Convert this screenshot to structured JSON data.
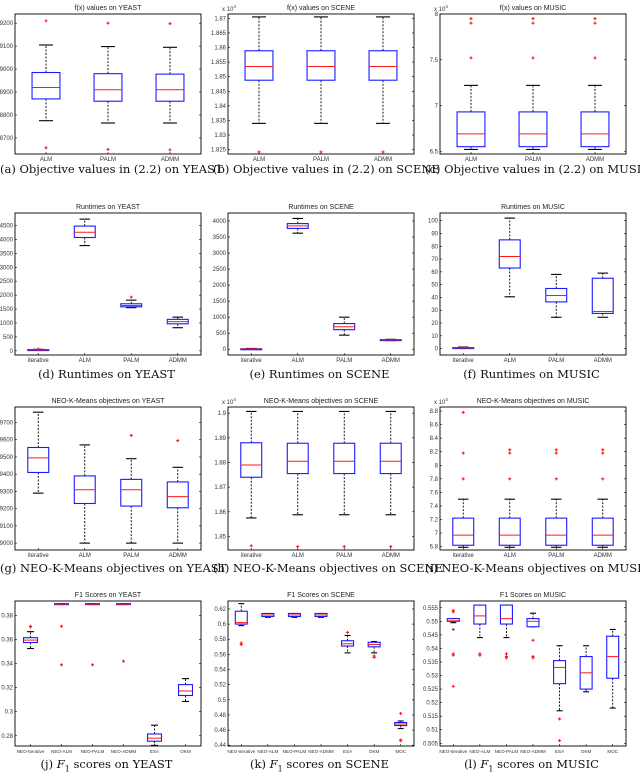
{
  "chart_data": [
    {
      "id": "a",
      "type": "boxplot",
      "title": "f(x) values on YEAST",
      "caption": "(a) Objective values in (2.2) on YEAST",
      "multiplier": "",
      "ylim": [
        8630,
        9240
      ],
      "yticks": [
        8700,
        8800,
        8900,
        9000,
        9100,
        9200
      ],
      "ytick_labels": [
        "8700",
        "8800",
        "8900",
        "9000",
        "9100",
        "9200"
      ],
      "categories": [
        "ALM",
        "PALM",
        "ADMM"
      ],
      "boxes": [
        {
          "whislo": 8775,
          "q1": 8870,
          "med": 8920,
          "q3": 8985,
          "whishi": 9105,
          "fliers": [
            9210,
            8657
          ]
        },
        {
          "whislo": 8765,
          "q1": 8860,
          "med": 8910,
          "q3": 8980,
          "whishi": 9098,
          "fliers": [
            9200,
            8650
          ]
        },
        {
          "whislo": 8765,
          "q1": 8860,
          "med": 8910,
          "q3": 8978,
          "whishi": 9095,
          "fliers": [
            9198,
            8648
          ]
        }
      ]
    },
    {
      "id": "b",
      "type": "boxplot",
      "title": "f(x) values on SCENE",
      "caption": "(b) Objective values in (2.2) on SCENE",
      "multiplier": "x 10^4",
      "ylim": [
        1.8235,
        1.8715
      ],
      "yticks": [
        1.825,
        1.83,
        1.835,
        1.84,
        1.845,
        1.85,
        1.855,
        1.86,
        1.865,
        1.87
      ],
      "ytick_labels": [
        "1.825",
        "1.83",
        "1.835",
        "1.84",
        "1.845",
        "1.85",
        "1.855",
        "1.86",
        "1.865",
        "1.87"
      ],
      "categories": [
        "ALM",
        "PALM",
        "ADMM"
      ],
      "boxes": [
        {
          "whislo": 1.834,
          "q1": 1.8488,
          "med": 1.8535,
          "q3": 1.8589,
          "whishi": 1.8705,
          "fliers": [
            1.8242
          ]
        },
        {
          "whislo": 1.834,
          "q1": 1.8488,
          "med": 1.8535,
          "q3": 1.8589,
          "whishi": 1.8705,
          "fliers": [
            1.8242
          ]
        },
        {
          "whislo": 1.834,
          "q1": 1.8488,
          "med": 1.8535,
          "q3": 1.8589,
          "whishi": 1.8705,
          "fliers": [
            1.8242
          ]
        }
      ]
    },
    {
      "id": "c",
      "type": "boxplot",
      "title": "f(x) values on MUSIC",
      "caption": "(c) Objective values in (2.2) on MUSIC",
      "multiplier": "x 10^4",
      "ylim": [
        6.47,
        8.0
      ],
      "yticks": [
        6.5,
        7,
        7.5,
        8
      ],
      "ytick_labels": [
        "6.5",
        "7",
        "7.5",
        "8"
      ],
      "categories": [
        "ALM",
        "PALM",
        "ADMM"
      ],
      "boxes": [
        {
          "whislo": 6.52,
          "q1": 6.55,
          "med": 6.69,
          "q3": 6.93,
          "whishi": 7.22,
          "fliers": [
            7.52,
            7.9,
            7.95
          ]
        },
        {
          "whislo": 6.52,
          "q1": 6.55,
          "med": 6.69,
          "q3": 6.93,
          "whishi": 7.22,
          "fliers": [
            7.52,
            7.9,
            7.95
          ]
        },
        {
          "whislo": 6.52,
          "q1": 6.55,
          "med": 6.69,
          "q3": 6.93,
          "whishi": 7.22,
          "fliers": [
            7.52,
            7.9,
            7.95
          ]
        }
      ]
    },
    {
      "id": "d",
      "type": "boxplot",
      "title": "Runtimes on YEAST",
      "caption": "(d) Runtimes on YEAST",
      "multiplier": "",
      "ylim": [
        -150,
        4950
      ],
      "yticks": [
        0,
        500,
        1000,
        1500,
        2000,
        2500,
        3000,
        3500,
        4000,
        4500
      ],
      "ytick_labels": [
        "0",
        "500",
        "1000",
        "1500",
        "2000",
        "2500",
        "3000",
        "3500",
        "4000",
        "4500"
      ],
      "categories": [
        "iterative",
        "ALM",
        "PALM",
        "ADMM"
      ],
      "boxes": [
        {
          "whislo": 20,
          "q1": 25,
          "med": 35,
          "q3": 45,
          "whishi": 55,
          "fliers": [
            70
          ]
        },
        {
          "whislo": 3780,
          "q1": 4070,
          "med": 4260,
          "q3": 4480,
          "whishi": 4730,
          "fliers": []
        },
        {
          "whislo": 1550,
          "q1": 1580,
          "med": 1630,
          "q3": 1690,
          "whishi": 1820,
          "fliers": [
            1930
          ]
        },
        {
          "whislo": 830,
          "q1": 970,
          "med": 1050,
          "q3": 1130,
          "whishi": 1210,
          "fliers": []
        }
      ]
    },
    {
      "id": "e",
      "type": "boxplot",
      "title": "Runtimes on SCENE",
      "caption": "(e) Runtimes on SCENE",
      "multiplier": "",
      "ylim": [
        -180,
        4250
      ],
      "yticks": [
        0,
        500,
        1000,
        1500,
        2000,
        2500,
        3000,
        3500,
        4000
      ],
      "ytick_labels": [
        "0",
        "500",
        "1000",
        "1500",
        "2000",
        "2500",
        "3000",
        "3500",
        "4000"
      ],
      "categories": [
        "iterative",
        "ALM",
        "PALM",
        "ADMM"
      ],
      "boxes": [
        {
          "whislo": 0,
          "q1": 5,
          "med": 10,
          "q3": 15,
          "whishi": 25,
          "fliers": []
        },
        {
          "whislo": 3620,
          "q1": 3770,
          "med": 3850,
          "q3": 3920,
          "whishi": 4080,
          "fliers": []
        },
        {
          "whislo": 440,
          "q1": 610,
          "med": 700,
          "q3": 800,
          "whishi": 1000,
          "fliers": []
        },
        {
          "whislo": 270,
          "q1": 280,
          "med": 290,
          "q3": 300,
          "whishi": 310,
          "fliers": []
        }
      ]
    },
    {
      "id": "f",
      "type": "boxplot",
      "title": "Runtimes on MUSIC",
      "caption": "(f) Runtimes on MUSIC",
      "multiplier": "",
      "ylim": [
        -5,
        106
      ],
      "yticks": [
        0,
        10,
        20,
        30,
        40,
        50,
        60,
        70,
        80,
        90,
        100
      ],
      "ytick_labels": [
        "0",
        "10",
        "20",
        "30",
        "40",
        "50",
        "60",
        "70",
        "80",
        "90",
        "100"
      ],
      "categories": [
        "iterative",
        "ALM",
        "PALM",
        "ADMM"
      ],
      "boxes": [
        {
          "whislo": 0.2,
          "q1": 0.4,
          "med": 0.6,
          "q3": 0.8,
          "whishi": 1.2,
          "fliers": []
        },
        {
          "whislo": 40.5,
          "q1": 63,
          "med": 72,
          "q3": 85,
          "whishi": 102,
          "fliers": []
        },
        {
          "whislo": 24.5,
          "q1": 36.5,
          "med": 41.5,
          "q3": 47,
          "whishi": 58,
          "fliers": []
        },
        {
          "whislo": 24.5,
          "q1": 27.5,
          "med": 29,
          "q3": 55,
          "whishi": 59,
          "fliers": []
        }
      ]
    },
    {
      "id": "g",
      "type": "boxplot",
      "title": "NEO-K-Means objectives on YEAST",
      "caption": "(g) NEO-K-Means objectives on YEAST",
      "multiplier": "",
      "ylim": [
        8960,
        9790
      ],
      "yticks": [
        9000,
        9100,
        9200,
        9300,
        9400,
        9500,
        9600,
        9700
      ],
      "ytick_labels": [
        "9000",
        "9100",
        "9200",
        "9300",
        "9400",
        "9500",
        "9600",
        "9700"
      ],
      "categories": [
        "iterative",
        "ALM",
        "PALM",
        "ADMM"
      ],
      "boxes": [
        {
          "whislo": 9290,
          "q1": 9410,
          "med": 9495,
          "q3": 9555,
          "whishi": 9760,
          "fliers": []
        },
        {
          "whislo": 9000,
          "q1": 9230,
          "med": 9310,
          "q3": 9390,
          "whishi": 9570,
          "fliers": []
        },
        {
          "whislo": 9000,
          "q1": 9215,
          "med": 9310,
          "q3": 9370,
          "whishi": 9490,
          "fliers": [
            9625
          ]
        },
        {
          "whislo": 9000,
          "q1": 9205,
          "med": 9270,
          "q3": 9355,
          "whishi": 9440,
          "fliers": [
            9595
          ]
        }
      ]
    },
    {
      "id": "h",
      "type": "boxplot",
      "title": "NEO-K-Means objectives on SCENE",
      "caption": "(h) NEO-K-Means objectives on SCENE",
      "multiplier": "x 10^4",
      "ylim": [
        1.8445,
        1.9025
      ],
      "yticks": [
        1.85,
        1.86,
        1.87,
        1.88,
        1.89,
        1.9
      ],
      "ytick_labels": [
        "1.85",
        "1.86",
        "1.87",
        "1.88",
        "1.89",
        "1.9"
      ],
      "categories": [
        "iterative",
        "ALM",
        "PALM",
        "ADMM"
      ],
      "boxes": [
        {
          "whislo": 1.8575,
          "q1": 1.874,
          "med": 1.879,
          "q3": 1.888,
          "whishi": 1.9007,
          "fliers": [
            1.8462
          ]
        },
        {
          "whislo": 1.8588,
          "q1": 1.8755,
          "med": 1.8805,
          "q3": 1.8878,
          "whishi": 1.9007,
          "fliers": [
            1.8459
          ]
        },
        {
          "whislo": 1.8588,
          "q1": 1.8755,
          "med": 1.8805,
          "q3": 1.8878,
          "whishi": 1.9007,
          "fliers": [
            1.8459
          ]
        },
        {
          "whislo": 1.8588,
          "q1": 1.8755,
          "med": 1.8805,
          "q3": 1.8878,
          "whishi": 1.9007,
          "fliers": [
            1.8459
          ]
        }
      ]
    },
    {
      "id": "i",
      "type": "boxplot",
      "title": "NEO-K-Means objectives on MUSIC",
      "caption": "(i) NEO-K-Means objectives on MUSIC",
      "multiplier": "x 10^4",
      "ylim": [
        6.75,
        8.86
      ],
      "yticks": [
        6.8,
        7,
        7.2,
        7.4,
        7.6,
        7.8,
        8,
        8.2,
        8.4,
        8.6,
        8.8
      ],
      "ytick_labels": [
        "6.8",
        "7",
        "7.2",
        "7.4",
        "7.6",
        "7.8",
        "8",
        "8.2",
        "8.4",
        "8.6",
        "8.8"
      ],
      "categories": [
        "iterative",
        "ALM",
        "PALM",
        "ADMM"
      ],
      "boxes": [
        {
          "whislo": 6.79,
          "q1": 6.82,
          "med": 6.97,
          "q3": 7.22,
          "whishi": 7.5,
          "fliers": [
            7.8,
            8.18,
            8.78
          ]
        },
        {
          "whislo": 6.79,
          "q1": 6.82,
          "med": 6.97,
          "q3": 7.22,
          "whishi": 7.5,
          "fliers": [
            7.8,
            8.18,
            8.23
          ]
        },
        {
          "whislo": 6.79,
          "q1": 6.82,
          "med": 6.97,
          "q3": 7.22,
          "whishi": 7.5,
          "fliers": [
            7.8,
            8.18,
            8.23
          ]
        },
        {
          "whislo": 6.79,
          "q1": 6.82,
          "med": 6.97,
          "q3": 7.22,
          "whishi": 7.5,
          "fliers": [
            7.8,
            8.18,
            8.23
          ]
        }
      ]
    },
    {
      "id": "j",
      "type": "boxplot",
      "title": "F1 Scores on YEAST",
      "caption_prefix": "(j) ",
      "caption_var": "F",
      "caption_sub": "1",
      "caption_suffix": " scores on YEAST",
      "multiplier": "",
      "ylim": [
        0.2715,
        0.392
      ],
      "yticks": [
        0.28,
        0.3,
        0.32,
        0.34,
        0.36,
        0.38
      ],
      "ytick_labels": [
        "0.28",
        "0.3",
        "0.32",
        "0.34",
        "0.36",
        "0.38"
      ],
      "categories": [
        "NEO-Iterative",
        "NEO-ALM",
        "NEO-PALM",
        "NEO-ADMM",
        "ESA",
        "OKM"
      ],
      "boxes": [
        {
          "whislo": 0.3525,
          "q1": 0.3575,
          "med": 0.3595,
          "q3": 0.3615,
          "whishi": 0.3665,
          "fliers": [
            0.3705,
            0.371
          ]
        },
        {
          "whislo": 0.3892,
          "q1": 0.3892,
          "med": 0.3894,
          "q3": 0.3898,
          "whishi": 0.3898,
          "fliers": [
            0.371,
            0.339
          ]
        },
        {
          "whislo": 0.3892,
          "q1": 0.3892,
          "med": 0.3894,
          "q3": 0.3898,
          "whishi": 0.3898,
          "fliers": [
            0.339
          ]
        },
        {
          "whislo": 0.3892,
          "q1": 0.3892,
          "med": 0.3894,
          "q3": 0.3898,
          "whishi": 0.3898,
          "fliers": [
            0.342
          ]
        },
        {
          "whislo": 0.272,
          "q1": 0.2755,
          "med": 0.278,
          "q3": 0.2815,
          "whishi": 0.2888,
          "fliers": []
        },
        {
          "whislo": 0.3085,
          "q1": 0.3135,
          "med": 0.3172,
          "q3": 0.3225,
          "whishi": 0.3275,
          "fliers": []
        }
      ]
    },
    {
      "id": "k",
      "type": "boxplot",
      "title": "F1 Scores on SCENE",
      "caption_prefix": "(k) ",
      "caption_var": "F",
      "caption_sub": "1",
      "caption_suffix": " scores on SCENE",
      "multiplier": "",
      "ylim": [
        0.439,
        0.6305
      ],
      "yticks": [
        0.44,
        0.46,
        0.48,
        0.5,
        0.52,
        0.54,
        0.56,
        0.58,
        0.6,
        0.62
      ],
      "ytick_labels": [
        "0.44",
        "0.46",
        "0.48",
        "0.5",
        "0.52",
        "0.54",
        "0.56",
        "0.58",
        "0.6",
        "0.62"
      ],
      "categories": [
        "NEO-Iterative",
        "NEO-ALM",
        "NEO-PALM",
        "NEO-ADMM",
        "ESA",
        "OKM",
        "MOC"
      ],
      "boxes": [
        {
          "whislo": 0.598,
          "q1": 0.6,
          "med": 0.602,
          "q3": 0.617,
          "whishi": 0.627,
          "fliers": [
            0.573,
            0.575
          ]
        },
        {
          "whislo": 0.609,
          "q1": 0.61,
          "med": 0.612,
          "q3": 0.614,
          "whishi": 0.614,
          "fliers": []
        },
        {
          "whislo": 0.609,
          "q1": 0.61,
          "med": 0.612,
          "q3": 0.614,
          "whishi": 0.614,
          "fliers": []
        },
        {
          "whislo": 0.609,
          "q1": 0.61,
          "med": 0.612,
          "q3": 0.614,
          "whishi": 0.614,
          "fliers": []
        },
        {
          "whislo": 0.562,
          "q1": 0.571,
          "med": 0.574,
          "q3": 0.578,
          "whishi": 0.585,
          "fliers": [
            0.589
          ]
        },
        {
          "whislo": 0.562,
          "q1": 0.57,
          "med": 0.573,
          "q3": 0.576,
          "whishi": 0.577,
          "fliers": [
            0.556,
            0.558
          ]
        },
        {
          "whislo": 0.462,
          "q1": 0.466,
          "med": 0.468,
          "q3": 0.47,
          "whishi": 0.472,
          "fliers": [
            0.482,
            0.446,
            0.447
          ]
        }
      ]
    },
    {
      "id": "l",
      "type": "boxplot",
      "title": "F1 Scores on MUSIC",
      "caption_prefix": "(l) ",
      "caption_var": "F",
      "caption_sub": "1",
      "caption_suffix": " scores on MUSIC",
      "multiplier": "",
      "ylim": [
        0.504,
        0.5575
      ],
      "yticks": [
        0.505,
        0.51,
        0.515,
        0.52,
        0.525,
        0.53,
        0.535,
        0.54,
        0.545,
        0.55,
        0.555
      ],
      "ytick_labels": [
        "0.505",
        "0.51",
        "0.515",
        "0.52",
        "0.525",
        "0.53",
        "0.535",
        "0.54",
        "0.545",
        "0.55",
        "0.555"
      ],
      "categories": [
        "NEO-Iterative",
        "NEO-ALM",
        "NEO-PALM",
        "NEO-ADMM",
        "ESA",
        "OKM",
        "MOC"
      ],
      "boxes": [
        {
          "whislo": 0.5495,
          "q1": 0.55,
          "med": 0.5502,
          "q3": 0.551,
          "whishi": 0.551,
          "fliers": [
            0.5535,
            0.554,
            0.547,
            0.5375,
            0.538,
            0.526
          ]
        },
        {
          "whislo": 0.544,
          "q1": 0.549,
          "med": 0.552,
          "q3": 0.556,
          "whishi": 0.556,
          "fliers": [
            0.5375,
            0.538
          ]
        },
        {
          "whislo": 0.544,
          "q1": 0.549,
          "med": 0.551,
          "q3": 0.556,
          "whishi": 0.556,
          "fliers": [
            0.5365,
            0.537,
            0.538
          ]
        },
        {
          "whislo": 0.548,
          "q1": 0.548,
          "med": 0.55,
          "q3": 0.551,
          "whishi": 0.553,
          "fliers": [
            0.543,
            0.5365,
            0.537
          ]
        },
        {
          "whislo": 0.517,
          "q1": 0.527,
          "med": 0.533,
          "q3": 0.5355,
          "whishi": 0.541,
          "fliers": [
            0.514,
            0.506
          ]
        },
        {
          "whislo": 0.524,
          "q1": 0.525,
          "med": 0.531,
          "q3": 0.537,
          "whishi": 0.541,
          "fliers": []
        },
        {
          "whislo": 0.518,
          "q1": 0.529,
          "med": 0.537,
          "q3": 0.5445,
          "whishi": 0.547,
          "fliers": []
        }
      ]
    }
  ],
  "colors": {
    "box": "#1a1aff",
    "median": "#ff1a1a",
    "whisker": "#000000",
    "flier": "#ff1a1a",
    "axis": "#000000"
  }
}
